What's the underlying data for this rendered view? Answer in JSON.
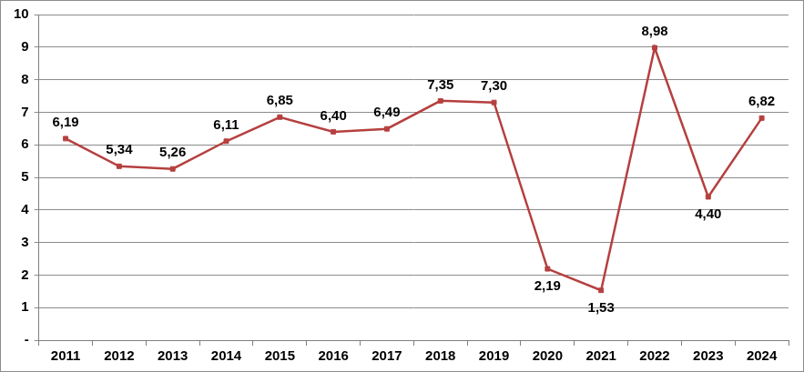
{
  "chart_data": {
    "type": "line",
    "categories": [
      "2011",
      "2012",
      "2013",
      "2014",
      "2015",
      "2016",
      "2017",
      "2018",
      "2019",
      "2020",
      "2021",
      "2022",
      "2023",
      "2024"
    ],
    "values": [
      6.19,
      5.34,
      5.26,
      6.11,
      6.85,
      6.4,
      6.49,
      7.35,
      7.3,
      2.19,
      1.53,
      8.98,
      4.4,
      6.82
    ],
    "value_labels": [
      "6,19",
      "5,34",
      "5,26",
      "6,11",
      "6,85",
      "6,40",
      "6,49",
      "7,35",
      "7,30",
      "2,19",
      "1,53",
      "8,98",
      "4,40",
      "6,82"
    ],
    "color": "#b5403f",
    "marker": "square",
    "ylim": [
      0,
      10
    ],
    "yticks": [
      {
        "value": 0,
        "label": "-"
      },
      1,
      2,
      3,
      4,
      5,
      6,
      7,
      8,
      9,
      10
    ],
    "grid": true,
    "data_labels": true
  }
}
